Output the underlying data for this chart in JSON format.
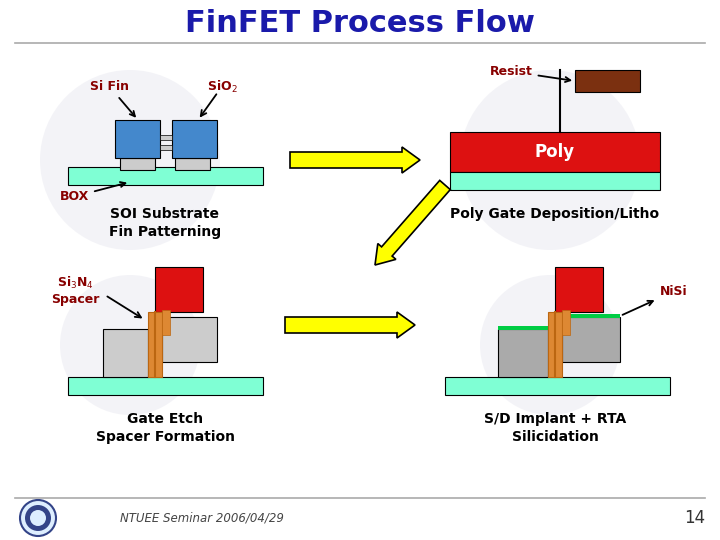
{
  "title": "FinFET Process Flow",
  "title_color": "#1a1aaa",
  "title_fontsize": 22,
  "panel_bg": "#ffffff",
  "footer_text": "NTUEE Seminar 2006/04/29",
  "footer_number": "14",
  "colors": {
    "cyan": "#7fffd4",
    "blue": "#4488cc",
    "blue_light": "#6699dd",
    "gray": "#aaaaaa",
    "gray_light": "#cccccc",
    "red": "#dd1111",
    "orange": "#dd8833",
    "orange_dark": "#bb6611",
    "brown": "#7b3010",
    "yellow": "#ffff00",
    "dark_red_text": "#880000",
    "green_line": "#00cc44",
    "black": "#000000",
    "white": "#ffffff"
  }
}
